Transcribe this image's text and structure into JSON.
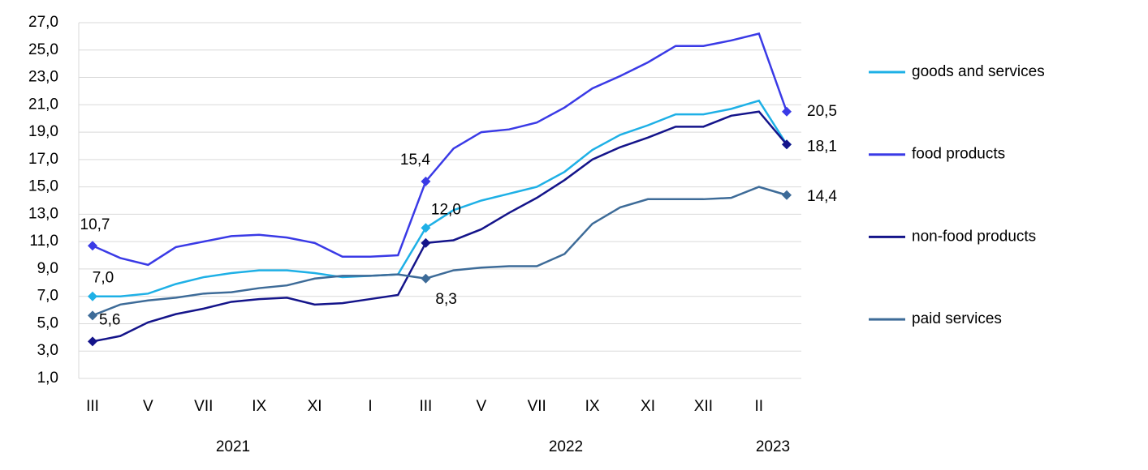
{
  "chart_data": {
    "type": "line",
    "categories": [
      "III",
      null,
      "V",
      null,
      "VII",
      null,
      "IX",
      null,
      "XI",
      null,
      "I",
      null,
      "III",
      null,
      "V",
      null,
      "VII",
      null,
      "IX",
      null,
      "XI",
      null,
      "XII",
      null,
      "II",
      null
    ],
    "year_labels": [
      "2021",
      "2022",
      "2023"
    ],
    "ylim": [
      1,
      27
    ],
    "yticks": [
      {
        "value": 1,
        "label": "1,0"
      },
      {
        "value": 3,
        "label": "3,0"
      },
      {
        "value": 5,
        "label": "5,0"
      },
      {
        "value": 7,
        "label": "7,0"
      },
      {
        "value": 9,
        "label": "9,0"
      },
      {
        "value": 11,
        "label": "11,0"
      },
      {
        "value": 13,
        "label": "13,0"
      },
      {
        "value": 15,
        "label": "15,0"
      },
      {
        "value": 17,
        "label": "17,0"
      },
      {
        "value": 19,
        "label": "19,0"
      },
      {
        "value": 21,
        "label": "21,0"
      },
      {
        "value": 23,
        "label": "23,0"
      },
      {
        "value": 25,
        "label": "25,0"
      },
      {
        "value": 27,
        "label": "27,0"
      }
    ],
    "grid": true,
    "legend": "right",
    "series": [
      {
        "name": "goods and services",
        "color": "#1eb0e6",
        "values": [
          7.0,
          7.0,
          7.2,
          7.9,
          8.4,
          8.7,
          8.9,
          8.9,
          8.7,
          8.4,
          8.5,
          8.6,
          12.0,
          13.3,
          14.0,
          14.5,
          15.0,
          16.1,
          17.7,
          18.8,
          19.5,
          20.3,
          20.3,
          20.7,
          21.3,
          18.1
        ],
        "value_labels": [
          "7,0",
          null,
          null,
          null,
          null,
          null,
          null,
          null,
          null,
          null,
          null,
          null,
          "12,0",
          null,
          null,
          null,
          null,
          null,
          null,
          null,
          null,
          null,
          null,
          null,
          null,
          null
        ]
      },
      {
        "name": "food products",
        "color": "#3a3ae6",
        "values": [
          10.7,
          9.8,
          9.3,
          10.6,
          11.0,
          11.4,
          11.5,
          11.3,
          10.9,
          9.9,
          9.9,
          10.0,
          15.4,
          17.8,
          19.0,
          19.2,
          19.7,
          20.8,
          22.2,
          23.1,
          24.1,
          25.3,
          25.3,
          25.7,
          26.2,
          20.5
        ],
        "value_labels": [
          "10,7",
          null,
          null,
          null,
          null,
          null,
          null,
          null,
          null,
          null,
          null,
          null,
          "15,4",
          null,
          null,
          null,
          null,
          null,
          null,
          null,
          null,
          null,
          null,
          null,
          null,
          "20,5"
        ]
      },
      {
        "name": "non-food products",
        "color": "#14148a",
        "values": [
          3.7,
          4.1,
          5.1,
          5.7,
          6.1,
          6.6,
          6.8,
          6.9,
          6.4,
          6.5,
          6.8,
          7.1,
          10.9,
          11.1,
          11.9,
          13.1,
          14.2,
          15.5,
          17.0,
          17.9,
          18.6,
          19.4,
          19.4,
          20.2,
          20.5,
          18.1
        ],
        "value_labels": [
          null,
          null,
          null,
          null,
          null,
          null,
          null,
          null,
          null,
          null,
          null,
          null,
          null,
          null,
          null,
          null,
          null,
          null,
          null,
          null,
          null,
          null,
          null,
          null,
          null,
          "18,1"
        ]
      },
      {
        "name": "paid services",
        "color": "#3d6b98",
        "values": [
          5.6,
          6.4,
          6.7,
          6.9,
          7.2,
          7.3,
          7.6,
          7.8,
          8.3,
          8.5,
          8.5,
          8.6,
          8.3,
          8.9,
          9.1,
          9.2,
          9.2,
          10.1,
          12.3,
          13.5,
          14.1,
          14.1,
          14.1,
          14.2,
          15.0,
          14.4
        ],
        "value_labels": [
          "5,6",
          null,
          null,
          null,
          null,
          null,
          null,
          null,
          null,
          null,
          null,
          null,
          "8,3",
          null,
          null,
          null,
          null,
          null,
          null,
          null,
          null,
          null,
          null,
          null,
          null,
          "14,4"
        ]
      }
    ]
  }
}
